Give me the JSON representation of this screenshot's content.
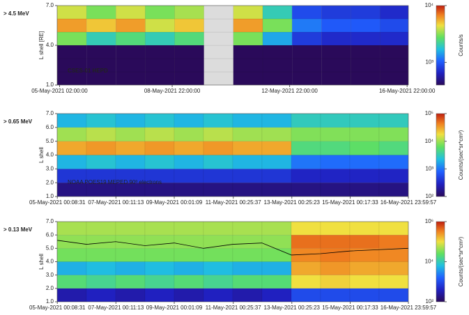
{
  "chart_data": [
    {
      "type": "heatmap",
      "energy_label": "> 4.5 MeV",
      "annotation": "CSES-01 HEPD",
      "annotation_color": "#e03a2a",
      "ylabel": "L shell [RE]",
      "colorbar_label": "Counts/s",
      "x": [
        5,
        6,
        7,
        8,
        9,
        10,
        11,
        12,
        13,
        14,
        15,
        16
      ],
      "y": [
        1,
        2,
        3,
        4,
        5,
        6
      ],
      "values": [
        [
          400,
          400,
          400,
          400,
          400,
          null,
          400,
          400,
          400,
          400,
          400,
          400
        ],
        [
          400,
          400,
          400,
          400,
          400,
          null,
          400,
          400,
          400,
          400,
          400,
          400
        ],
        [
          400,
          400,
          400,
          400,
          400,
          null,
          400,
          400,
          400,
          400,
          400,
          400
        ],
        [
          3000,
          2000,
          2500,
          2000,
          2500,
          null,
          3000,
          1500,
          800,
          700,
          700,
          700
        ],
        [
          6000,
          5000,
          6000,
          4000,
          5000,
          null,
          6000,
          3000,
          1200,
          1000,
          1000,
          900
        ],
        [
          4000,
          3000,
          4000,
          3000,
          3500,
          null,
          4000,
          2000,
          900,
          800,
          800,
          700
        ]
      ],
      "null_color": "#dcdcdc",
      "xlim": [
        5.0,
        16.96
      ],
      "ylim": [
        1,
        7
      ],
      "xticks": [
        {
          "value": 5.083,
          "label": "05-May-2021  02:00:00"
        },
        {
          "value": 8.917,
          "label": "08-May-2021  22:00:00"
        },
        {
          "value": 12.917,
          "label": "12-May-2021  22:00:00"
        },
        {
          "value": 16.917,
          "label": "16-May-2021  22:00:00"
        }
      ],
      "yticks": [
        {
          "value": 1,
          "label": "1.0"
        },
        {
          "value": 4,
          "label": "4.0"
        },
        {
          "value": 7,
          "label": "7.0"
        }
      ],
      "zlim": [
        400,
        10000
      ],
      "zticks": [
        {
          "value": 1000,
          "label": "10³"
        },
        {
          "value": 10000,
          "label": "10⁴"
        }
      ],
      "log_color": true
    },
    {
      "type": "heatmap",
      "energy_label": "> 0.65 MeV",
      "annotation": "NOAA POES19 MEPED 90º electrons",
      "annotation_color": "#ffffff",
      "ylabel": "L shell",
      "colorbar_label": "Counts/(sec*sr*cm²)",
      "x": [
        5,
        6,
        7,
        8,
        9,
        10,
        11,
        12,
        13,
        14,
        15,
        16
      ],
      "y": [
        1,
        2,
        3,
        4,
        5,
        6
      ],
      "values": [
        [
          150,
          150,
          150,
          150,
          150,
          150,
          150,
          150,
          150,
          150,
          150,
          150
        ],
        [
          400,
          400,
          400,
          400,
          400,
          400,
          400,
          400,
          300,
          300,
          300,
          300
        ],
        [
          2000,
          2500,
          2000,
          2500,
          2000,
          2500,
          2000,
          2000,
          1000,
          900,
          900,
          900
        ],
        [
          30000,
          35000,
          30000,
          35000,
          30000,
          35000,
          30000,
          30000,
          5000,
          5000,
          6000,
          5000
        ],
        [
          10000,
          12000,
          10000,
          12000,
          10000,
          12000,
          10000,
          10000,
          8000,
          8000,
          8000,
          8000
        ],
        [
          2000,
          2500,
          2000,
          2500,
          2000,
          2500,
          2000,
          2000,
          3000,
          3000,
          3000,
          3000
        ]
      ],
      "xlim": [
        5.0,
        17.0
      ],
      "ylim": [
        1,
        7
      ],
      "xticks": [
        {
          "value": 5.006,
          "label": "05-May-2021  00:08:31"
        },
        {
          "value": 7.008,
          "label": "07-May-2021  00:11:13"
        },
        {
          "value": 9.001,
          "label": "09-May-2021  00:01:09"
        },
        {
          "value": 11.018,
          "label": "11-May-2021  00:25:37"
        },
        {
          "value": 13.018,
          "label": "13-May-2021  00:25:23"
        },
        {
          "value": 15.012,
          "label": "15-May-2021  00:17:33"
        },
        {
          "value": 17.0,
          "label": "16-May-2021  23:59:57"
        }
      ],
      "yticks": [
        {
          "value": 1,
          "label": "1.0"
        },
        {
          "value": 2,
          "label": "2.0"
        },
        {
          "value": 3,
          "label": "3.0"
        },
        {
          "value": 4,
          "label": "4.0"
        },
        {
          "value": 5,
          "label": "5.0"
        },
        {
          "value": 6,
          "label": "6.0"
        },
        {
          "value": 7,
          "label": "7.0"
        }
      ],
      "zlim": [
        100,
        100000
      ],
      "zticks": [
        {
          "value": 100,
          "label": "10²"
        },
        {
          "value": 1000,
          "label": "10³"
        },
        {
          "value": 10000,
          "label": "10⁴"
        },
        {
          "value": 100000,
          "label": "10⁵"
        }
      ],
      "log_color": true
    },
    {
      "type": "heatmap",
      "energy_label": "> 0.13 MeV",
      "ylabel": "L shell",
      "colorbar_label": "Counts/(sec*sr*cm²)",
      "x": [
        5,
        6,
        7,
        8,
        9,
        10,
        11,
        12,
        13,
        14,
        15,
        16
      ],
      "y": [
        1,
        2,
        3,
        4,
        5,
        6
      ],
      "values": [
        [
          300,
          400,
          300,
          400,
          300,
          400,
          300,
          400,
          1000,
          1000,
          1000,
          1000
        ],
        [
          20000,
          15000,
          20000,
          15000,
          20000,
          15000,
          20000,
          20000,
          100000,
          120000,
          100000,
          100000
        ],
        [
          5000,
          6000,
          5000,
          6000,
          5000,
          6000,
          5000,
          5000,
          200000,
          250000,
          200000,
          200000
        ],
        [
          30000,
          30000,
          30000,
          30000,
          30000,
          30000,
          30000,
          30000,
          300000,
          350000,
          300000,
          300000
        ],
        [
          40000,
          40000,
          40000,
          40000,
          40000,
          40000,
          40000,
          40000,
          400000,
          400000,
          400000,
          350000
        ],
        [
          50000,
          50000,
          50000,
          50000,
          50000,
          50000,
          50000,
          50000,
          100000,
          100000,
          100000,
          100000
        ]
      ],
      "line": {
        "x": [
          5,
          6,
          7,
          8,
          9,
          10,
          11,
          12,
          13,
          14,
          15,
          16,
          17
        ],
        "values": [
          5.6,
          5.3,
          5.5,
          5.2,
          5.4,
          5.0,
          5.3,
          5.4,
          4.5,
          4.6,
          4.8,
          4.9,
          5.0
        ],
        "color": "#000000"
      },
      "xlim": [
        5.0,
        17.0
      ],
      "ylim": [
        1,
        7
      ],
      "xticks": [
        {
          "value": 5.006,
          "label": "05-May-2021  00:08:31"
        },
        {
          "value": 7.008,
          "label": "07-May-2021  00:11:13"
        },
        {
          "value": 9.001,
          "label": "09-May-2021  00:01:09"
        },
        {
          "value": 11.018,
          "label": "11-May-2021  00:25:37"
        },
        {
          "value": 13.018,
          "label": "13-May-2021  00:25:23"
        },
        {
          "value": 15.012,
          "label": "15-May-2021  00:17:33"
        },
        {
          "value": 17.0,
          "label": "16-May-2021  23:59:57"
        }
      ],
      "yticks": [
        {
          "value": 1,
          "label": "1.0"
        },
        {
          "value": 2,
          "label": "2.0"
        },
        {
          "value": 3,
          "label": "3.0"
        },
        {
          "value": 4,
          "label": "4.0"
        },
        {
          "value": 5,
          "label": "5.0"
        },
        {
          "value": 6,
          "label": "6.0"
        },
        {
          "value": 7,
          "label": "7.0"
        }
      ],
      "zlim": [
        100,
        1000000
      ],
      "zticks": [
        {
          "value": 100,
          "label": "10²"
        },
        {
          "value": 10000,
          "label": "10⁴"
        },
        {
          "value": 1000000,
          "label": "10⁶"
        }
      ],
      "log_color": true
    }
  ]
}
